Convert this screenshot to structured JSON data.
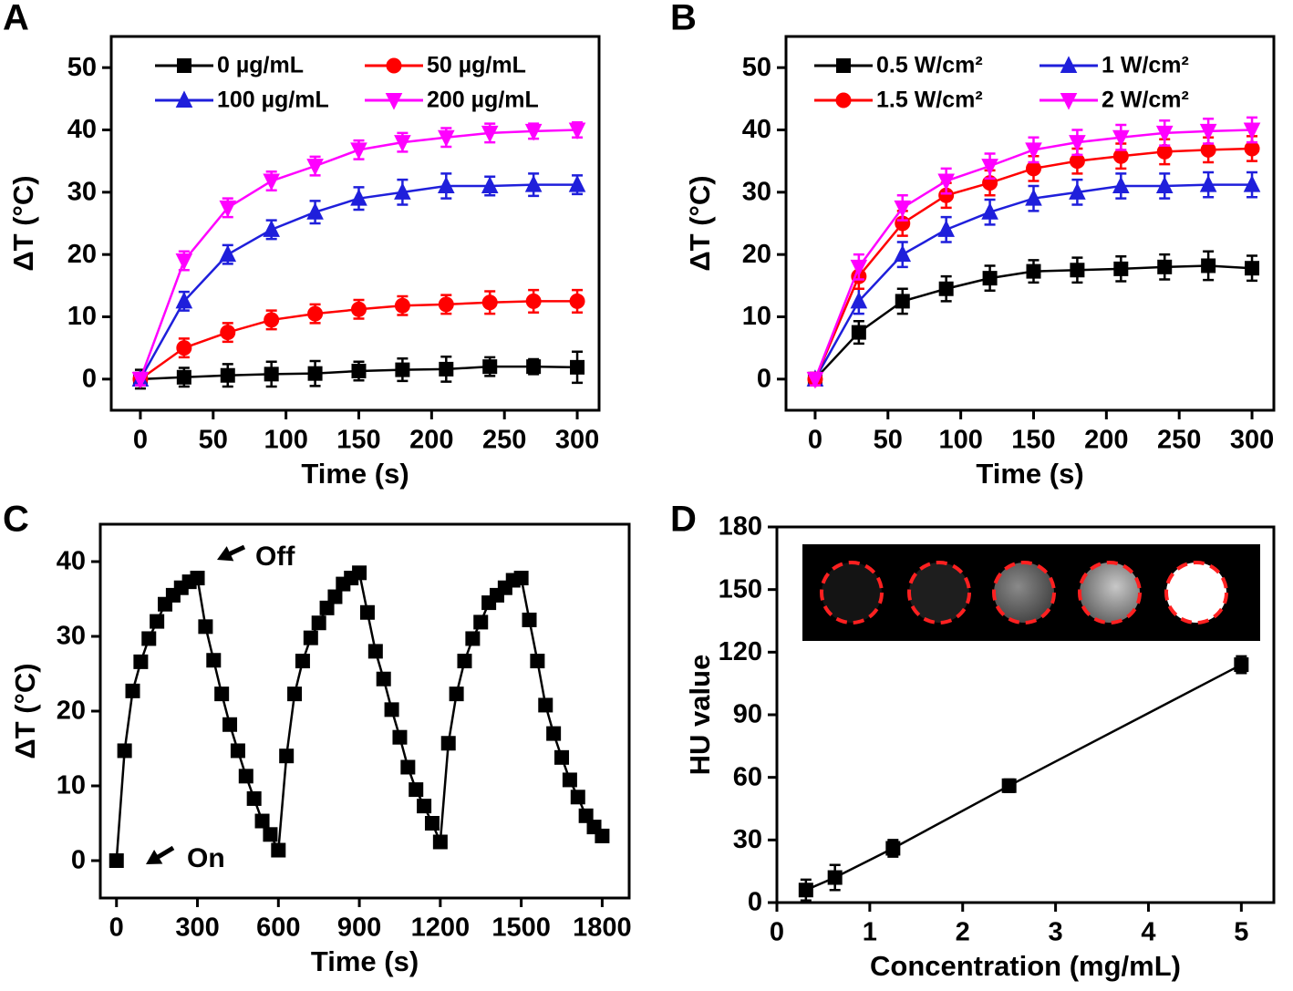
{
  "chart_data": [
    {
      "type": "line",
      "title": "A",
      "x_label": "Time (s)",
      "y_label": "ΔT (°C)",
      "x": [
        0,
        30,
        60,
        90,
        120,
        150,
        180,
        210,
        240,
        270,
        300
      ],
      "xlim": [
        -20,
        315
      ],
      "xticks": [
        0,
        50,
        100,
        150,
        200,
        250,
        300
      ],
      "ylim": [
        -5,
        55
      ],
      "yticks": [
        0,
        10,
        20,
        30,
        40,
        50
      ],
      "legend": "upper left",
      "series": [
        {
          "name": "0 µg/mL",
          "color": "#000000",
          "marker": "square",
          "values": [
            0,
            0.3,
            0.6,
            0.8,
            0.9,
            1.3,
            1.5,
            1.6,
            2,
            2,
            1.9
          ],
          "errors": [
            1.5,
            1.5,
            1.8,
            2,
            2,
            1.5,
            1.8,
            2,
            1.5,
            1.2,
            2.5
          ]
        },
        {
          "name": "50 µg/mL",
          "color": "#ff0000",
          "marker": "circle",
          "values": [
            0,
            5,
            7.5,
            9.5,
            10.5,
            11.2,
            11.8,
            12,
            12.3,
            12.5,
            12.5
          ],
          "errors": [
            1,
            1.5,
            1.5,
            1.5,
            1.5,
            1.5,
            1.5,
            1.5,
            1.8,
            1.8,
            1.8
          ]
        },
        {
          "name": "100 µg/mL",
          "color": "#1f1fdb",
          "marker": "triangle-up",
          "values": [
            0,
            12.5,
            20,
            24,
            26.8,
            29,
            30,
            31,
            31,
            31.2,
            31.2
          ],
          "errors": [
            1,
            1.5,
            1.5,
            1.5,
            1.8,
            1.8,
            2,
            2,
            1.5,
            1.8,
            1.5
          ]
        },
        {
          "name": "200 µg/mL",
          "color": "#ff00ff",
          "marker": "triangle-down",
          "values": [
            0,
            19,
            27.5,
            31.8,
            34.2,
            36.8,
            38,
            38.8,
            39.5,
            39.8,
            40
          ],
          "errors": [
            1,
            1.5,
            1.5,
            1.5,
            1.5,
            1.5,
            1.5,
            1.5,
            1.5,
            1.2,
            1.2
          ]
        }
      ]
    },
    {
      "type": "line",
      "title": "B",
      "x_label": "Time (s)",
      "y_label": "ΔT (°C)",
      "x": [
        0,
        30,
        60,
        90,
        120,
        150,
        180,
        210,
        240,
        270,
        300
      ],
      "xlim": [
        -20,
        315
      ],
      "xticks": [
        0,
        50,
        100,
        150,
        200,
        250,
        300
      ],
      "ylim": [
        -5,
        55
      ],
      "yticks": [
        0,
        10,
        20,
        30,
        40,
        50
      ],
      "legend": "upper left",
      "series": [
        {
          "name": "0.5 W/cm²",
          "color": "#000000",
          "marker": "square",
          "values": [
            0,
            7.5,
            12.5,
            14.5,
            16.2,
            17.3,
            17.5,
            17.7,
            18,
            18.2,
            17.8
          ],
          "errors": [
            1,
            1.8,
            2,
            2,
            2,
            1.8,
            2,
            2,
            2,
            2.3,
            2
          ]
        },
        {
          "name": "1  W/cm²",
          "color": "#1f1fdb",
          "marker": "triangle-up",
          "values": [
            0,
            12.5,
            20,
            24,
            26.8,
            29,
            30,
            31,
            31,
            31.2,
            31.2
          ],
          "errors": [
            1,
            2,
            2,
            2,
            2,
            2,
            2,
            2,
            2,
            2,
            2
          ]
        },
        {
          "name": "1.5  W/cm²",
          "color": "#ff0000",
          "marker": "circle",
          "values": [
            0,
            16.5,
            25,
            29.5,
            31.5,
            33.8,
            35,
            35.8,
            36.5,
            36.8,
            37
          ],
          "errors": [
            1,
            2,
            2,
            2,
            2,
            2,
            2,
            2,
            2,
            2,
            2
          ]
        },
        {
          "name": "2  W/cm²",
          "color": "#ff00ff",
          "marker": "triangle-down",
          "values": [
            0,
            18,
            27.5,
            31.8,
            34.2,
            36.8,
            38,
            38.8,
            39.5,
            39.8,
            40
          ],
          "errors": [
            1,
            2,
            2,
            2,
            2,
            2,
            2,
            2,
            2,
            2,
            2
          ]
        }
      ]
    },
    {
      "type": "line",
      "title": "C",
      "x_label": "Time (s)",
      "y_label": "ΔT (°C)",
      "x": [
        0,
        30,
        60,
        90,
        120,
        150,
        180,
        210,
        240,
        270,
        300,
        330,
        360,
        390,
        420,
        450,
        480,
        510,
        540,
        570,
        600,
        630,
        660,
        690,
        720,
        750,
        780,
        810,
        840,
        870,
        900,
        930,
        960,
        990,
        1020,
        1050,
        1080,
        1110,
        1140,
        1170,
        1200,
        1230,
        1260,
        1290,
        1320,
        1350,
        1380,
        1410,
        1440,
        1470,
        1500,
        1530,
        1560,
        1590,
        1620,
        1650,
        1680,
        1710,
        1740,
        1770,
        1800
      ],
      "xlim": [
        -60,
        1900
      ],
      "xticks": [
        0,
        300,
        600,
        900,
        1200,
        1500,
        1800
      ],
      "ylim": [
        -5,
        45
      ],
      "yticks": [
        0,
        10,
        20,
        30,
        40
      ],
      "annotations": [
        "Off",
        "On"
      ],
      "series": [
        {
          "name": null,
          "color": "#000000",
          "marker": "square",
          "values": [
            0,
            14.7,
            22.7,
            26.6,
            29.7,
            32,
            34.3,
            35.5,
            36.5,
            37.3,
            37.8,
            31.3,
            26.8,
            22.3,
            18.2,
            14.7,
            11.3,
            8.3,
            5.3,
            3.5,
            1.4,
            14,
            22.3,
            26.7,
            29.8,
            31.8,
            33.8,
            35.3,
            37,
            37.8,
            38.5,
            33.2,
            28,
            24.3,
            20.2,
            16.5,
            12.5,
            9.5,
            7.3,
            5,
            2.5,
            15.7,
            22.3,
            26.7,
            29.7,
            31.9,
            34.5,
            35.5,
            36.5,
            37.5,
            37.8,
            32.2,
            26.7,
            20.8,
            17,
            13.8,
            10.8,
            8.5,
            6,
            4.5,
            3.3
          ]
        }
      ]
    },
    {
      "type": "line",
      "title": "D",
      "x_label": "Concentration (mg/mL)",
      "y_label": "HU value",
      "x": [
        0.3125,
        0.625,
        1.25,
        2.5,
        5
      ],
      "xlim": [
        0,
        5.35
      ],
      "xticks": [
        0,
        1,
        2,
        3,
        4,
        5
      ],
      "ylim": [
        0,
        180
      ],
      "yticks": [
        0,
        30,
        60,
        90,
        120,
        150,
        180
      ],
      "series": [
        {
          "name": null,
          "color": "#000000",
          "marker": "square",
          "values": [
            6,
            12,
            26,
            56,
            114
          ],
          "errors": [
            5,
            6,
            4,
            3,
            4
          ]
        }
      ]
    }
  ]
}
